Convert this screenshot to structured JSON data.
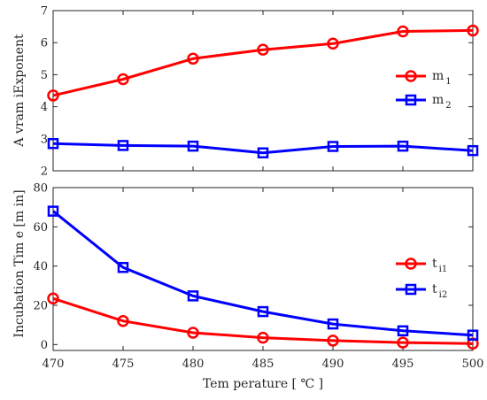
{
  "chart_data": [
    {
      "type": "line",
      "x": [
        470,
        475,
        480,
        485,
        490,
        495,
        500
      ],
      "xlim": [
        470,
        500
      ],
      "ylim": [
        2,
        7
      ],
      "yticks": [
        2,
        3,
        4,
        5,
        6,
        7
      ],
      "ylabel": "A vram iExponent",
      "xlabel": "",
      "grid": false,
      "legend_position": "right",
      "series": [
        {
          "name": "m",
          "name_sub": "1",
          "color": "#ff0000",
          "marker": "circle",
          "values": [
            4.35,
            4.86,
            5.5,
            5.78,
            5.97,
            6.35,
            6.38
          ]
        },
        {
          "name": "m",
          "name_sub": "2",
          "color": "#0000ff",
          "marker": "square",
          "values": [
            2.85,
            2.79,
            2.77,
            2.56,
            2.76,
            2.77,
            2.63
          ]
        }
      ]
    },
    {
      "type": "line",
      "x": [
        470,
        475,
        480,
        485,
        490,
        495,
        500
      ],
      "xlim": [
        470,
        500
      ],
      "ylim": [
        -3,
        80
      ],
      "yticks": [
        0,
        20,
        40,
        60,
        80
      ],
      "xticks": [
        470,
        475,
        480,
        485,
        490,
        495,
        500
      ],
      "ylabel": "Incubation Tim e [m in]",
      "xlabel": "Tem perature [ ℃ ]",
      "grid": false,
      "legend_position": "right",
      "series": [
        {
          "name": "t",
          "name_sub": "i1",
          "color": "#ff0000",
          "marker": "circle",
          "values": [
            23.5,
            12.0,
            6.0,
            3.5,
            2.0,
            1.0,
            0.5
          ]
        },
        {
          "name": "t",
          "name_sub": "i2",
          "color": "#0000ff",
          "marker": "square",
          "values": [
            68.0,
            39.3,
            24.8,
            16.8,
            10.5,
            7.0,
            4.8
          ]
        }
      ]
    }
  ]
}
